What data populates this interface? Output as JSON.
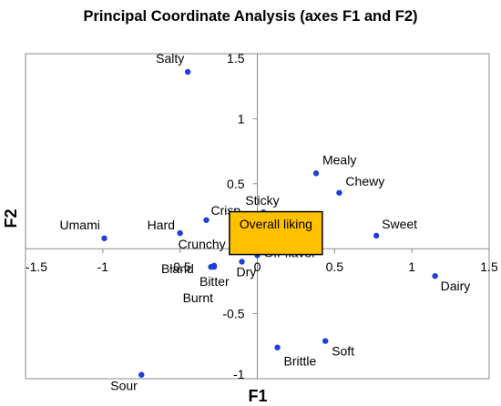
{
  "chart_data": {
    "type": "scatter",
    "title": "Principal Coordinate Analysis (axes F1 and F2)",
    "xlabel": "F1",
    "ylabel": "F2",
    "xlim": [
      -1.5,
      1.5
    ],
    "ylim": [
      -1,
      1.5
    ],
    "xticks": [
      -1.5,
      -1,
      -0.5,
      0,
      0.5,
      1,
      1.5
    ],
    "yticks": [
      -1,
      -0.5,
      0,
      0.5,
      1,
      1.5
    ],
    "xtick_labels": [
      "-1.5",
      "-1",
      "-0.5",
      "0",
      "0.5",
      "1",
      "1.5"
    ],
    "ytick_labels": [
      "-1",
      "-0.5",
      "",
      "0.5",
      "1",
      "1.5"
    ],
    "grid": false,
    "point_color": "#1f3fd6",
    "highlight_fill": "#ffc000",
    "highlight_stroke": "#000000",
    "points": [
      {
        "label": "Salty",
        "x": -0.45,
        "y": 1.36
      },
      {
        "label": "Mealy",
        "x": 0.38,
        "y": 0.58
      },
      {
        "label": "Chewy",
        "x": 0.53,
        "y": 0.43
      },
      {
        "label": "Sticky",
        "x": 0.04,
        "y": 0.28
      },
      {
        "label": "Crisp",
        "x": -0.33,
        "y": 0.22
      },
      {
        "label": "Hard",
        "x": -0.5,
        "y": 0.12
      },
      {
        "label": "Umami",
        "x": -0.99,
        "y": 0.08
      },
      {
        "label": "Sweet",
        "x": 0.77,
        "y": 0.1
      },
      {
        "label": "Crunchy",
        "x": -0.1,
        "y": 0.05
      },
      {
        "label": "0",
        "x": -0.12,
        "y": 0.04
      },
      {
        "label": "Off-flavor",
        "x": 0.0,
        "y": -0.05
      },
      {
        "label": "Dry",
        "x": -0.1,
        "y": -0.1
      },
      {
        "label": "Bland",
        "x": -0.28,
        "y": -0.14
      },
      {
        "label": "Bitter",
        "x": -0.28,
        "y": -0.13
      },
      {
        "label": "Burnt",
        "x": -0.3,
        "y": -0.14
      },
      {
        "label": "Dairy",
        "x": 1.15,
        "y": -0.21
      },
      {
        "label": "Brittle",
        "x": 0.13,
        "y": -0.76
      },
      {
        "label": "Soft",
        "x": 0.44,
        "y": -0.71
      },
      {
        "label": "Sour",
        "x": -0.75,
        "y": -0.97
      }
    ],
    "highlight": {
      "label": "Overall liking",
      "x": 0.12,
      "y": 0.12
    }
  }
}
